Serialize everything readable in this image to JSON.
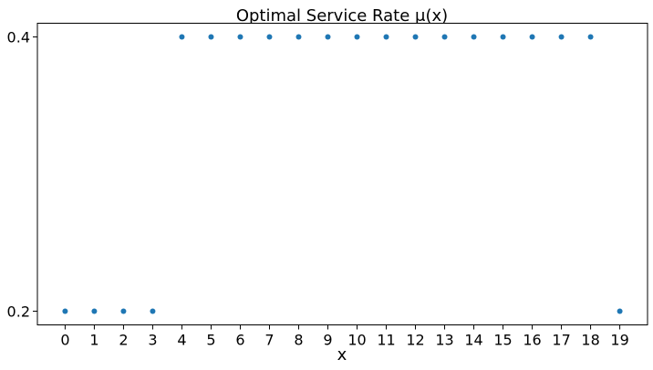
{
  "chart_data": {
    "type": "scatter",
    "title": "Optimal Service Rate μ(x)",
    "xlabel": "x",
    "ylabel": "",
    "x": [
      0,
      1,
      2,
      3,
      4,
      5,
      6,
      7,
      8,
      9,
      10,
      11,
      12,
      13,
      14,
      15,
      16,
      17,
      18,
      19
    ],
    "y": [
      0.2,
      0.2,
      0.2,
      0.2,
      0.4,
      0.4,
      0.4,
      0.4,
      0.4,
      0.4,
      0.4,
      0.4,
      0.4,
      0.4,
      0.4,
      0.4,
      0.4,
      0.4,
      0.4,
      0.2
    ],
    "xticks": [
      "0",
      "1",
      "2",
      "3",
      "4",
      "5",
      "6",
      "7",
      "8",
      "9",
      "10",
      "11",
      "12",
      "13",
      "14",
      "15",
      "16",
      "17",
      "18",
      "19"
    ],
    "yticks": [
      "0.2",
      "0.4"
    ],
    "xlim": [
      -0.95,
      19.95
    ],
    "ylim": [
      0.19,
      0.41
    ],
    "grid": false,
    "marker_color": "#1f77b4"
  }
}
